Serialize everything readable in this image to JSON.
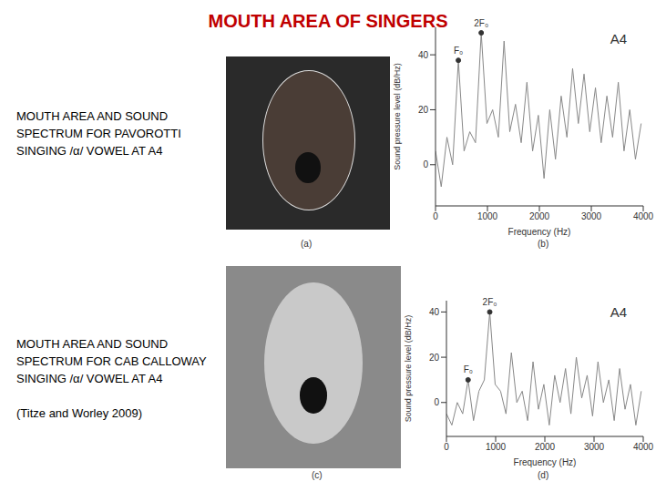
{
  "title": "MOUTH AREA OF SINGERS",
  "panels": [
    {
      "text": "MOUTH AREA AND SOUND SPECTRUM FOR  PAVOROTTI SINGING /α/ VOWEL AT A4",
      "photo_caption": "(a)",
      "chart_caption": "(b)"
    },
    {
      "text": "MOUTH AREA AND SOUND SPECTRUM FOR CAB CALLOWAY SINGING /α/ VOWEL AT A4",
      "citation": "(Titze and Worley 2009)",
      "photo_caption": "(c)",
      "chart_caption": "(d)"
    }
  ],
  "chart_data": [
    {
      "type": "line",
      "title": "A4",
      "x_label": "Frequency (Hz)",
      "y_label": "Sound pressure level (dB/Hz)",
      "color": "#888888",
      "xlim": [
        0,
        4000
      ],
      "xticks": [
        0,
        1000,
        2000,
        3000,
        4000
      ],
      "ylim": [
        -15,
        50
      ],
      "yticks": [
        0,
        20,
        40
      ],
      "x": [
        0,
        110,
        220,
        330,
        440,
        550,
        660,
        770,
        880,
        990,
        1100,
        1210,
        1320,
        1430,
        1540,
        1650,
        1760,
        1870,
        1980,
        2090,
        2200,
        2310,
        2420,
        2530,
        2640,
        2750,
        2860,
        2970,
        3080,
        3190,
        3300,
        3410,
        3520,
        3630,
        3740,
        3850,
        3960
      ],
      "values": [
        5,
        -8,
        10,
        0,
        38,
        5,
        12,
        8,
        48,
        15,
        20,
        10,
        45,
        12,
        22,
        8,
        30,
        5,
        18,
        -5,
        20,
        2,
        25,
        10,
        35,
        15,
        33,
        12,
        28,
        8,
        25,
        10,
        30,
        5,
        20,
        2,
        15
      ],
      "annotations": [
        {
          "text": "F₀",
          "x": 440,
          "y": 38
        },
        {
          "text": "2F₀",
          "x": 880,
          "y": 48
        }
      ]
    },
    {
      "type": "line",
      "title": "A4",
      "x_label": "Frequency (Hz)",
      "y_label": "Sound pressure level (dB/Hz)",
      "color": "#888888",
      "xlim": [
        0,
        4000
      ],
      "xticks": [
        0,
        1000,
        2000,
        3000,
        4000
      ],
      "ylim": [
        -15,
        45
      ],
      "yticks": [
        0,
        20,
        40
      ],
      "x": [
        0,
        110,
        220,
        330,
        440,
        550,
        660,
        770,
        880,
        990,
        1100,
        1210,
        1320,
        1430,
        1540,
        1650,
        1760,
        1870,
        1980,
        2090,
        2200,
        2310,
        2420,
        2530,
        2640,
        2750,
        2860,
        2970,
        3080,
        3190,
        3300,
        3410,
        3520,
        3630,
        3740,
        3850,
        3960
      ],
      "values": [
        -5,
        -10,
        0,
        -5,
        10,
        -8,
        5,
        10,
        40,
        8,
        5,
        -5,
        22,
        0,
        5,
        -8,
        18,
        -3,
        8,
        -10,
        12,
        0,
        15,
        -5,
        20,
        2,
        12,
        -6,
        18,
        0,
        10,
        -8,
        15,
        -3,
        8,
        -10,
        5
      ],
      "annotations": [
        {
          "text": "F₀",
          "x": 440,
          "y": 10
        },
        {
          "text": "2F₀",
          "x": 880,
          "y": 40
        }
      ]
    }
  ]
}
